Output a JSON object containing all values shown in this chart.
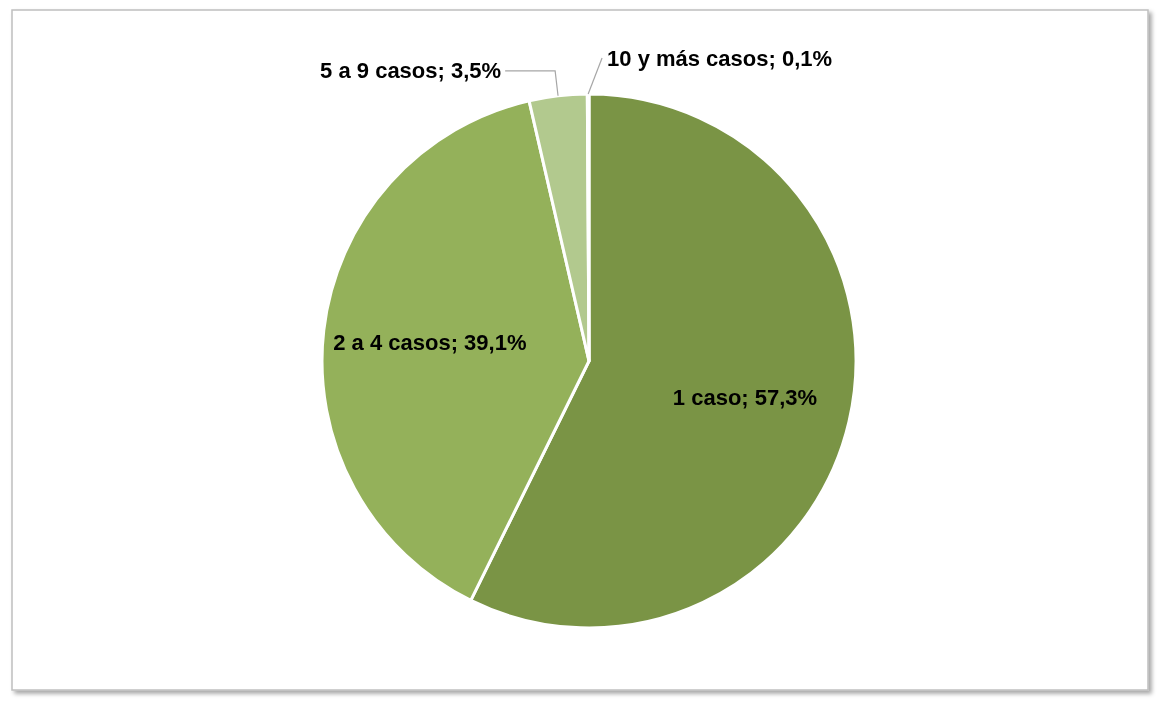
{
  "chart_data": {
    "type": "pie",
    "categories": [
      "1 caso",
      "2 a 4 casos",
      "5 a 9 casos",
      "10 y más casos"
    ],
    "values": [
      57.3,
      39.1,
      3.5,
      0.1
    ],
    "colors": [
      "#7a9445",
      "#94b15a",
      "#b2c98e",
      "#c8d8ab"
    ],
    "value_labels": [
      "57,3%",
      "39,1%",
      "3,5%",
      "0,1%"
    ]
  }
}
